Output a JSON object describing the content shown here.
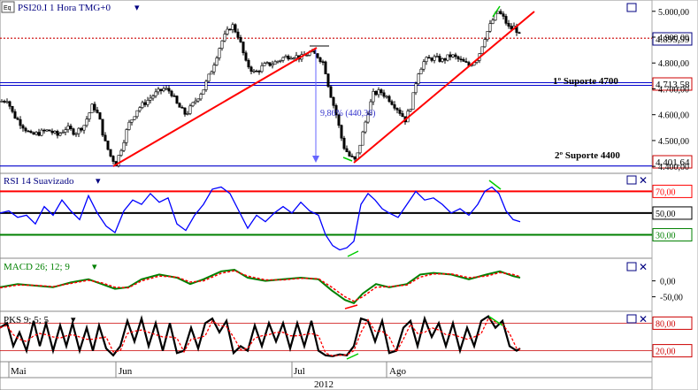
{
  "colors": {
    "price_candle_up": "#000000",
    "price_candle_down": "#000000",
    "trend": "#ff0000",
    "support": "#0000cc",
    "rsi_line": "#0000ff",
    "macd": "#008000",
    "macd_signal": "#ff0000",
    "pks": "#000000",
    "pks_signal": "#ff0000",
    "rsi_upper": "#ff0000",
    "rsi_mid": "#000000",
    "rsi_lower": "#008000",
    "dotted_price": "#cc0000"
  },
  "panels": {
    "price": {
      "title": "PSI20.I 1 Hora TMG+0",
      "prefix_icon": "Eq"
    },
    "rsi": {
      "title": "RSI 14 Suavizado"
    },
    "macd": {
      "title": "MACD 26; 12; 9"
    },
    "pks": {
      "title": "PKS 9; 5; 5"
    }
  },
  "annotations": {
    "support_1": "1º Suporte 4700",
    "support_2": "2º Suporte 4400",
    "measure": "9,86% (440,38)"
  },
  "price_tags": {
    "last": "4.895,99",
    "support_1": "4.713,58",
    "support_2": "4.401,64"
  },
  "x_axis": {
    "months": [
      "Mai",
      "Jun",
      "Jul",
      "Ago"
    ],
    "year": "2012"
  },
  "chart_data": [
    {
      "type": "candlestick",
      "title": "PSI20.I 1 Hora TMG+0",
      "y_ticks": [
        "5.000,00",
        "4.900,00",
        "4.800,00",
        "4.700,00",
        "4.600,00",
        "4.500,00",
        "4.400,00"
      ],
      "ylim": [
        4380,
        5030
      ],
      "x_months": [
        "Mai",
        "Jun",
        "Jul",
        "Ago"
      ],
      "close_path": [
        [
          0,
          4650
        ],
        [
          8,
          4660
        ],
        [
          15,
          4600
        ],
        [
          25,
          4560
        ],
        [
          35,
          4520
        ],
        [
          45,
          4530
        ],
        [
          55,
          4540
        ],
        [
          65,
          4520
        ],
        [
          75,
          4550
        ],
        [
          85,
          4530
        ],
        [
          95,
          4560
        ],
        [
          105,
          4640
        ],
        [
          112,
          4590
        ],
        [
          118,
          4500
        ],
        [
          125,
          4440
        ],
        [
          131,
          4410
        ],
        [
          138,
          4480
        ],
        [
          145,
          4560
        ],
        [
          155,
          4620
        ],
        [
          165,
          4650
        ],
        [
          175,
          4680
        ],
        [
          185,
          4700
        ],
        [
          193,
          4690
        ],
        [
          200,
          4640
        ],
        [
          210,
          4600
        ],
        [
          220,
          4650
        ],
        [
          230,
          4700
        ],
        [
          240,
          4780
        ],
        [
          250,
          4880
        ],
        [
          262,
          4950
        ],
        [
          270,
          4900
        ],
        [
          278,
          4800
        ],
        [
          288,
          4760
        ],
        [
          298,
          4790
        ],
        [
          310,
          4800
        ],
        [
          320,
          4820
        ],
        [
          330,
          4830
        ],
        [
          340,
          4820
        ],
        [
          350,
          4840
        ],
        [
          358,
          4830
        ],
        [
          366,
          4800
        ],
        [
          372,
          4700
        ],
        [
          380,
          4600
        ],
        [
          388,
          4480
        ],
        [
          395,
          4440
        ],
        [
          402,
          4420
        ],
        [
          408,
          4500
        ],
        [
          415,
          4600
        ],
        [
          422,
          4680
        ],
        [
          430,
          4690
        ],
        [
          440,
          4660
        ],
        [
          450,
          4620
        ],
        [
          458,
          4580
        ],
        [
          465,
          4640
        ],
        [
          472,
          4760
        ],
        [
          480,
          4810
        ],
        [
          490,
          4820
        ],
        [
          500,
          4810
        ],
        [
          510,
          4830
        ],
        [
          520,
          4810
        ],
        [
          530,
          4790
        ],
        [
          540,
          4820
        ],
        [
          548,
          4900
        ],
        [
          556,
          4960
        ],
        [
          563,
          5000
        ],
        [
          570,
          4970
        ],
        [
          576,
          4930
        ],
        [
          582,
          4940
        ],
        [
          588,
          4900
        ]
      ],
      "horizontal_levels": [
        {
          "label": "1º Suporte 4700",
          "value": 4713.58
        },
        {
          "label": "2º Suporte 4400",
          "value": 4401.64
        },
        {
          "label": "last",
          "value": 4895.99
        }
      ]
    },
    {
      "type": "line",
      "title": "RSI 14 Suavizado",
      "y_ticks": [
        "70,00",
        "50,00",
        "30,00"
      ],
      "ylim": [
        10,
        85
      ],
      "levels": [
        70,
        50,
        30
      ],
      "series": [
        {
          "values_path": [
            [
              0,
              50
            ],
            [
              10,
              52
            ],
            [
              20,
              46
            ],
            [
              30,
              48
            ],
            [
              40,
              40
            ],
            [
              50,
              56
            ],
            [
              60,
              48
            ],
            [
              70,
              62
            ],
            [
              80,
              52
            ],
            [
              90,
              44
            ],
            [
              100,
              66
            ],
            [
              110,
              50
            ],
            [
              120,
              38
            ],
            [
              130,
              32
            ],
            [
              140,
              52
            ],
            [
              150,
              62
            ],
            [
              160,
              58
            ],
            [
              170,
              68
            ],
            [
              180,
              60
            ],
            [
              190,
              64
            ],
            [
              200,
              40
            ],
            [
              210,
              34
            ],
            [
              220,
              48
            ],
            [
              230,
              58
            ],
            [
              240,
              72
            ],
            [
              250,
              74
            ],
            [
              260,
              68
            ],
            [
              270,
              52
            ],
            [
              280,
              36
            ],
            [
              290,
              48
            ],
            [
              300,
              42
            ],
            [
              310,
              50
            ],
            [
              320,
              56
            ],
            [
              330,
              50
            ],
            [
              340,
              60
            ],
            [
              350,
              52
            ],
            [
              360,
              48
            ],
            [
              368,
              30
            ],
            [
              376,
              20
            ],
            [
              384,
              16
            ],
            [
              392,
              18
            ],
            [
              400,
              24
            ],
            [
              408,
              58
            ],
            [
              416,
              68
            ],
            [
              424,
              62
            ],
            [
              432,
              54
            ],
            [
              440,
              50
            ],
            [
              450,
              46
            ],
            [
              460,
              58
            ],
            [
              470,
              70
            ],
            [
              480,
              62
            ],
            [
              490,
              64
            ],
            [
              500,
              58
            ],
            [
              510,
              50
            ],
            [
              520,
              54
            ],
            [
              530,
              48
            ],
            [
              540,
              58
            ],
            [
              548,
              70
            ],
            [
              556,
              74
            ],
            [
              564,
              68
            ],
            [
              572,
              52
            ],
            [
              580,
              44
            ],
            [
              588,
              42
            ]
          ]
        }
      ]
    },
    {
      "type": "line",
      "title": "MACD 26; 12; 9",
      "y_ticks": [
        "0,00",
        "-50,00"
      ],
      "ylim": [
        -90,
        60
      ],
      "series": [
        {
          "name": "MACD",
          "values_path": [
            [
              0,
              -20
            ],
            [
              20,
              -10
            ],
            [
              40,
              -15
            ],
            [
              60,
              -20
            ],
            [
              80,
              -5
            ],
            [
              100,
              5
            ],
            [
              115,
              -10
            ],
            [
              130,
              -25
            ],
            [
              145,
              -20
            ],
            [
              160,
              5
            ],
            [
              180,
              20
            ],
            [
              200,
              10
            ],
            [
              215,
              -10
            ],
            [
              230,
              5
            ],
            [
              250,
              30
            ],
            [
              265,
              35
            ],
            [
              280,
              10
            ],
            [
              300,
              0
            ],
            [
              320,
              5
            ],
            [
              340,
              10
            ],
            [
              360,
              5
            ],
            [
              375,
              -30
            ],
            [
              390,
              -60
            ],
            [
              400,
              -70
            ],
            [
              410,
              -40
            ],
            [
              425,
              -10
            ],
            [
              440,
              -20
            ],
            [
              460,
              -10
            ],
            [
              475,
              20
            ],
            [
              490,
              25
            ],
            [
              510,
              20
            ],
            [
              530,
              5
            ],
            [
              550,
              20
            ],
            [
              565,
              30
            ],
            [
              580,
              15
            ],
            [
              588,
              10
            ]
          ]
        },
        {
          "name": "signal",
          "values_path": [
            [
              0,
              -22
            ],
            [
              20,
              -13
            ],
            [
              40,
              -14
            ],
            [
              60,
              -18
            ],
            [
              80,
              -8
            ],
            [
              100,
              2
            ],
            [
              115,
              -6
            ],
            [
              130,
              -20
            ],
            [
              145,
              -22
            ],
            [
              160,
              0
            ],
            [
              180,
              15
            ],
            [
              200,
              12
            ],
            [
              215,
              -4
            ],
            [
              230,
              0
            ],
            [
              250,
              24
            ],
            [
              265,
              32
            ],
            [
              280,
              15
            ],
            [
              300,
              3
            ],
            [
              320,
              3
            ],
            [
              340,
              8
            ],
            [
              360,
              7
            ],
            [
              375,
              -20
            ],
            [
              390,
              -50
            ],
            [
              400,
              -64
            ],
            [
              410,
              -50
            ],
            [
              425,
              -20
            ],
            [
              440,
              -18
            ],
            [
              460,
              -13
            ],
            [
              475,
              12
            ],
            [
              490,
              22
            ],
            [
              510,
              22
            ],
            [
              530,
              10
            ],
            [
              550,
              15
            ],
            [
              565,
              26
            ],
            [
              580,
              20
            ],
            [
              588,
              13
            ]
          ]
        }
      ]
    },
    {
      "type": "line",
      "title": "PKS 9; 5; 5",
      "y_ticks": [
        "80,00",
        "20,00"
      ],
      "ylim": [
        0,
        100
      ],
      "levels": [
        80,
        20
      ],
      "series": [
        {
          "name": "PKS",
          "values_path": [
            [
              0,
              70
            ],
            [
              8,
              80
            ],
            [
              15,
              30
            ],
            [
              22,
              60
            ],
            [
              30,
              20
            ],
            [
              38,
              85
            ],
            [
              45,
              30
            ],
            [
              52,
              80
            ],
            [
              60,
              20
            ],
            [
              68,
              75
            ],
            [
              75,
              30
            ],
            [
              82,
              80
            ],
            [
              90,
              20
            ],
            [
              98,
              70
            ],
            [
              105,
              20
            ],
            [
              112,
              75
            ],
            [
              120,
              25
            ],
            [
              128,
              10
            ],
            [
              136,
              30
            ],
            [
              144,
              85
            ],
            [
              152,
              40
            ],
            [
              160,
              90
            ],
            [
              168,
              30
            ],
            [
              176,
              80
            ],
            [
              184,
              20
            ],
            [
              192,
              80
            ],
            [
              200,
              15
            ],
            [
              208,
              20
            ],
            [
              216,
              70
            ],
            [
              224,
              25
            ],
            [
              232,
              80
            ],
            [
              240,
              90
            ],
            [
              248,
              60
            ],
            [
              256,
              85
            ],
            [
              264,
              15
            ],
            [
              272,
              30
            ],
            [
              280,
              20
            ],
            [
              288,
              75
            ],
            [
              296,
              30
            ],
            [
              304,
              80
            ],
            [
              312,
              40
            ],
            [
              320,
              80
            ],
            [
              328,
              25
            ],
            [
              336,
              80
            ],
            [
              344,
              30
            ],
            [
              352,
              85
            ],
            [
              360,
              20
            ],
            [
              368,
              10
            ],
            [
              376,
              8
            ],
            [
              384,
              12
            ],
            [
              392,
              10
            ],
            [
              400,
              30
            ],
            [
              408,
              90
            ],
            [
              416,
              85
            ],
            [
              424,
              40
            ],
            [
              432,
              85
            ],
            [
              440,
              15
            ],
            [
              448,
              20
            ],
            [
              456,
              70
            ],
            [
              464,
              85
            ],
            [
              472,
              30
            ],
            [
              480,
              90
            ],
            [
              488,
              50
            ],
            [
              496,
              80
            ],
            [
              504,
              30
            ],
            [
              512,
              80
            ],
            [
              520,
              20
            ],
            [
              528,
              70
            ],
            [
              536,
              30
            ],
            [
              544,
              85
            ],
            [
              552,
              95
            ],
            [
              560,
              70
            ],
            [
              568,
              85
            ],
            [
              576,
              30
            ],
            [
              584,
              20
            ],
            [
              588,
              25
            ]
          ]
        }
      ]
    }
  ]
}
